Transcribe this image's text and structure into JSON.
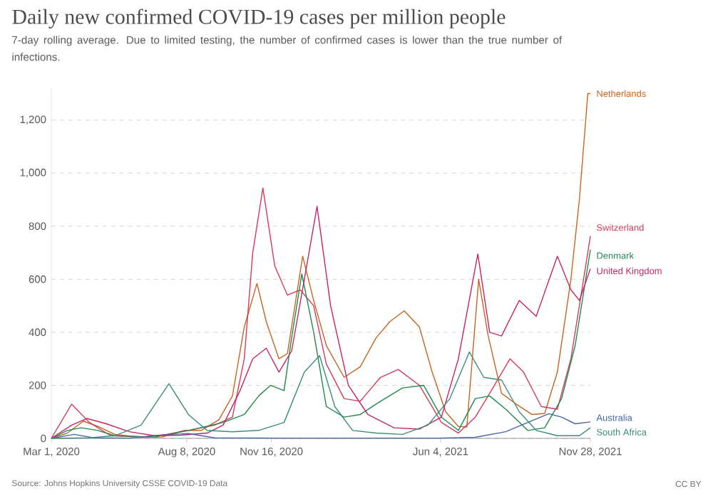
{
  "chart_data": {
    "type": "line",
    "title": "Daily new confirmed COVID-19 cases per million people",
    "subtitle": "7-day rolling average. Due to limited testing, the number of confirmed cases is lower than the true number of infections.",
    "annotations": [
      "Source: Johns Hopkins University CSSE COVID-19 Data",
      "CC BY"
    ],
    "xlim": [
      "2020-03-01",
      "2021-11-28"
    ],
    "xticks": [
      {
        "value": "2020-03-01",
        "label": "Mar 1, 2020"
      },
      {
        "value": "2020-08-08",
        "label": "Aug 8, 2020"
      },
      {
        "value": "2020-11-16",
        "label": "Nov 16, 2020"
      },
      {
        "value": "2021-06-04",
        "label": "Jun 4, 2021"
      },
      {
        "value": "2021-11-28",
        "label": "Nov 28, 2021"
      }
    ],
    "ylim": [
      0,
      1320
    ],
    "yticks": [
      {
        "value": 0,
        "label": "0"
      },
      {
        "value": 200,
        "label": "200"
      },
      {
        "value": 400,
        "label": "400"
      },
      {
        "value": 600,
        "label": "600"
      },
      {
        "value": 800,
        "label": "800"
      },
      {
        "value": 1000,
        "label": "1,000"
      },
      {
        "value": 1200,
        "label": "1,200"
      }
    ],
    "grid": "y",
    "line_style": "solid",
    "marker": "none",
    "series": [
      {
        "name": "Netherlands",
        "color": "#c8641f",
        "x": [
          "2020-03-01",
          "2020-03-20",
          "2020-04-08",
          "2020-04-25",
          "2020-05-15",
          "2020-06-15",
          "2020-07-10",
          "2020-08-05",
          "2020-08-25",
          "2020-09-15",
          "2020-10-01",
          "2020-10-15",
          "2020-10-30",
          "2020-11-10",
          "2020-11-25",
          "2020-12-05",
          "2020-12-23",
          "2021-01-05",
          "2021-01-20",
          "2021-02-10",
          "2021-03-01",
          "2021-03-20",
          "2021-04-05",
          "2021-04-22",
          "2021-05-10",
          "2021-05-25",
          "2021-06-10",
          "2021-06-25",
          "2021-07-05",
          "2021-07-19",
          "2021-07-30",
          "2021-08-15",
          "2021-09-01",
          "2021-09-20",
          "2021-10-05",
          "2021-10-20",
          "2021-11-05",
          "2021-11-15",
          "2021-11-25",
          "2021-11-28"
        ],
        "values": [
          0,
          20,
          65,
          45,
          15,
          4,
          5,
          30,
          30,
          70,
          160,
          420,
          584,
          440,
          300,
          320,
          687,
          520,
          350,
          230,
          270,
          380,
          440,
          481,
          420,
          250,
          100,
          45,
          43,
          600,
          390,
          170,
          130,
          90,
          94,
          250,
          600,
          900,
          1300,
          1300
        ]
      },
      {
        "name": "Switzerland",
        "color": "#d23c5c",
        "x": [
          "2020-03-01",
          "2020-03-25",
          "2020-04-15",
          "2020-05-10",
          "2020-06-15",
          "2020-07-15",
          "2020-08-10",
          "2020-09-10",
          "2020-10-01",
          "2020-10-15",
          "2020-10-25",
          "2020-11-06",
          "2020-11-20",
          "2020-12-05",
          "2020-12-20",
          "2021-01-05",
          "2021-01-20",
          "2021-02-10",
          "2021-03-01",
          "2021-03-25",
          "2021-04-15",
          "2021-05-10",
          "2021-06-05",
          "2021-06-25",
          "2021-07-15",
          "2021-08-01",
          "2021-08-25",
          "2021-09-10",
          "2021-10-01",
          "2021-10-20",
          "2021-11-05",
          "2021-11-20",
          "2021-11-28"
        ],
        "values": [
          0,
          129,
          60,
          10,
          5,
          15,
          30,
          50,
          80,
          300,
          700,
          944,
          650,
          540,
          560,
          500,
          280,
          150,
          140,
          230,
          260,
          200,
          60,
          20,
          80,
          170,
          300,
          250,
          120,
          110,
          300,
          600,
          763
        ]
      },
      {
        "name": "Denmark",
        "color": "#1f8a4c",
        "x": [
          "2020-03-01",
          "2020-03-20",
          "2020-04-05",
          "2020-04-25",
          "2020-05-15",
          "2020-07-01",
          "2020-08-10",
          "2020-09-20",
          "2020-10-15",
          "2020-11-01",
          "2020-11-15",
          "2020-12-01",
          "2020-12-10",
          "2020-12-22",
          "2021-01-05",
          "2021-01-20",
          "2021-02-10",
          "2021-03-01",
          "2021-03-25",
          "2021-04-20",
          "2021-05-15",
          "2021-06-05",
          "2021-06-25",
          "2021-07-15",
          "2021-08-01",
          "2021-08-20",
          "2021-09-15",
          "2021-10-05",
          "2021-10-25",
          "2021-11-10",
          "2021-11-28"
        ],
        "values": [
          0,
          30,
          40,
          30,
          10,
          5,
          30,
          60,
          90,
          160,
          200,
          180,
          380,
          620,
          400,
          120,
          80,
          90,
          140,
          190,
          200,
          80,
          30,
          150,
          160,
          110,
          30,
          40,
          150,
          350,
          711
        ]
      },
      {
        "name": "United Kingdom",
        "color": "#c2266a",
        "x": [
          "2020-03-01",
          "2020-03-25",
          "2020-04-12",
          "2020-05-05",
          "2020-06-01",
          "2020-07-01",
          "2020-08-01",
          "2020-09-01",
          "2020-09-20",
          "2020-10-10",
          "2020-10-25",
          "2020-11-10",
          "2020-11-25",
          "2020-12-10",
          "2020-12-25",
          "2021-01-09",
          "2021-01-25",
          "2021-02-15",
          "2021-03-10",
          "2021-04-10",
          "2021-05-10",
          "2021-06-05",
          "2021-06-25",
          "2021-07-18",
          "2021-08-01",
          "2021-08-15",
          "2021-09-05",
          "2021-09-25",
          "2021-10-20",
          "2021-11-05",
          "2021-11-15",
          "2021-11-28"
        ],
        "values": [
          0,
          50,
          75,
          55,
          25,
          10,
          12,
          20,
          50,
          180,
          300,
          340,
          250,
          330,
          600,
          875,
          500,
          200,
          90,
          40,
          35,
          80,
          300,
          695,
          400,
          386,
          520,
          460,
          687,
          560,
          520,
          639
        ]
      },
      {
        "name": "Australia",
        "color": "#4a66a5",
        "x": [
          "2020-03-01",
          "2020-03-28",
          "2020-04-20",
          "2020-06-01",
          "2020-07-20",
          "2020-08-10",
          "2020-09-10",
          "2020-12-01",
          "2021-04-01",
          "2021-06-01",
          "2021-07-15",
          "2021-08-20",
          "2021-09-15",
          "2021-10-10",
          "2021-10-25",
          "2021-11-10",
          "2021-11-28"
        ],
        "values": [
          0,
          15,
          2,
          1,
          15,
          18,
          2,
          1,
          1,
          1,
          4,
          25,
          60,
          93,
          80,
          55,
          62
        ]
      },
      {
        "name": "South Africa",
        "color": "#3b8d7b",
        "x": [
          "2020-03-01",
          "2020-04-15",
          "2020-05-15",
          "2020-06-15",
          "2020-07-18",
          "2020-08-10",
          "2020-09-01",
          "2020-10-01",
          "2020-11-01",
          "2020-12-01",
          "2020-12-25",
          "2021-01-12",
          "2021-01-30",
          "2021-02-20",
          "2021-03-20",
          "2021-04-20",
          "2021-05-20",
          "2021-06-15",
          "2021-07-08",
          "2021-07-25",
          "2021-08-15",
          "2021-09-05",
          "2021-09-25",
          "2021-10-20",
          "2021-11-15",
          "2021-11-28"
        ],
        "values": [
          0,
          2,
          10,
          50,
          206,
          90,
          30,
          25,
          30,
          60,
          250,
          312,
          120,
          30,
          20,
          15,
          50,
          150,
          326,
          230,
          220,
          100,
          30,
          10,
          10,
          40
        ]
      }
    ]
  }
}
